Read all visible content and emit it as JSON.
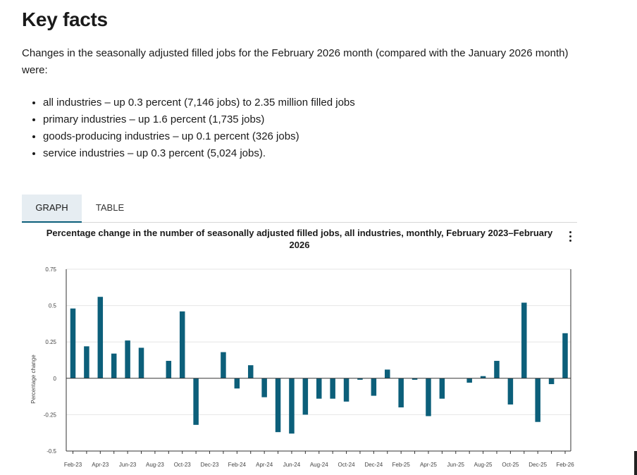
{
  "heading": "Key facts",
  "intro": "Changes in the seasonally adjusted filled jobs for the February 2026 month (compared with the January 2026 month) were:",
  "facts": [
    "all industries – up 0.3 percent (7,146 jobs) to 2.35 million filled jobs",
    "primary industries – up 1.6 percent (1,735 jobs)",
    "goods-producing industries – up 0.1 percent (326 jobs)",
    "service industries – up 0.3 percent (5,024 jobs)."
  ],
  "tabs": {
    "graph": "GRAPH",
    "table": "TABLE",
    "active": "graph"
  },
  "menu_icon": "more-vertical-icon",
  "colors": {
    "bar": "#0c5f7a",
    "tab_active_bg": "#e6edf2",
    "grid": "#e6e6e6"
  },
  "chart_data": {
    "type": "bar",
    "title": "Percentage change in the number of seasonally adjusted filled jobs, all industries, monthly, February 2023–February 2026",
    "ylabel": "Percentage change",
    "xlabel": "",
    "ylim": [
      -0.5,
      0.75
    ],
    "yticks": [
      0.75,
      0.5,
      0.25,
      0,
      -0.25,
      -0.5
    ],
    "ytick_labels": [
      "0.75",
      "0.5",
      "0.25",
      "0",
      "-0.25",
      "-0.5"
    ],
    "grid": true,
    "categories": [
      "Feb-23",
      "Mar-23",
      "Apr-23",
      "May-23",
      "Jun-23",
      "Jul-23",
      "Aug-23",
      "Sep-23",
      "Oct-23",
      "Nov-23",
      "Dec-23",
      "Jan-24",
      "Feb-24",
      "Mar-24",
      "Apr-24",
      "May-24",
      "Jun-24",
      "Jul-24",
      "Aug-24",
      "Sep-24",
      "Oct-24",
      "Nov-24",
      "Dec-24",
      "Jan-25",
      "Feb-25",
      "Mar-25",
      "Apr-25",
      "May-25",
      "Jun-25",
      "Jul-25",
      "Aug-25",
      "Sep-25",
      "Oct-25",
      "Nov-25",
      "Dec-25",
      "Jan-26",
      "Feb-26"
    ],
    "xtick_labels": [
      "Feb-23",
      "Apr-23",
      "Jun-23",
      "Aug-23",
      "Oct-23",
      "Dec-23",
      "Feb-24",
      "Apr-24",
      "Jun-24",
      "Aug-24",
      "Oct-24",
      "Dec-24",
      "Feb-25",
      "Apr-25",
      "Jun-25",
      "Aug-25",
      "Oct-25",
      "Dec-25",
      "Feb-26"
    ],
    "values": [
      0.48,
      0.22,
      0.56,
      0.17,
      0.26,
      0.21,
      0.0,
      0.12,
      0.46,
      -0.32,
      0.0,
      0.18,
      -0.07,
      0.09,
      -0.13,
      -0.37,
      -0.38,
      -0.25,
      -0.14,
      -0.14,
      -0.16,
      -0.01,
      -0.12,
      0.06,
      -0.2,
      -0.01,
      -0.26,
      -0.14,
      0.0,
      -0.03,
      0.015,
      0.12,
      -0.18,
      0.52,
      -0.3,
      -0.04,
      0.31
    ]
  }
}
